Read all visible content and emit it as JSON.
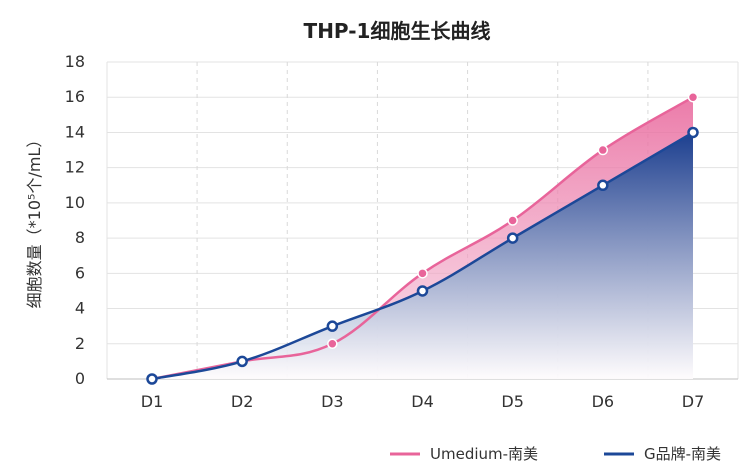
{
  "chart_data": {
    "type": "area",
    "title": "THP-1细胞生长曲线",
    "xlabel": "",
    "ylabel": "细胞数量（*10⁵个/mL）",
    "categories": [
      "D1",
      "D2",
      "D3",
      "D4",
      "D5",
      "D6",
      "D7"
    ],
    "ylim": [
      0,
      18
    ],
    "yticks": [
      0,
      2,
      4,
      6,
      8,
      10,
      12,
      14,
      16,
      18
    ],
    "grid": true,
    "legend_position": "bottom-right",
    "series": [
      {
        "name": "Umedium-南美",
        "values": [
          0,
          1,
          2,
          6,
          9,
          13,
          16
        ],
        "color": "#e8649a"
      },
      {
        "name": "G品牌-南美",
        "values": [
          0,
          1,
          3,
          5,
          8,
          11,
          14
        ],
        "color": "#1c4898"
      }
    ]
  }
}
